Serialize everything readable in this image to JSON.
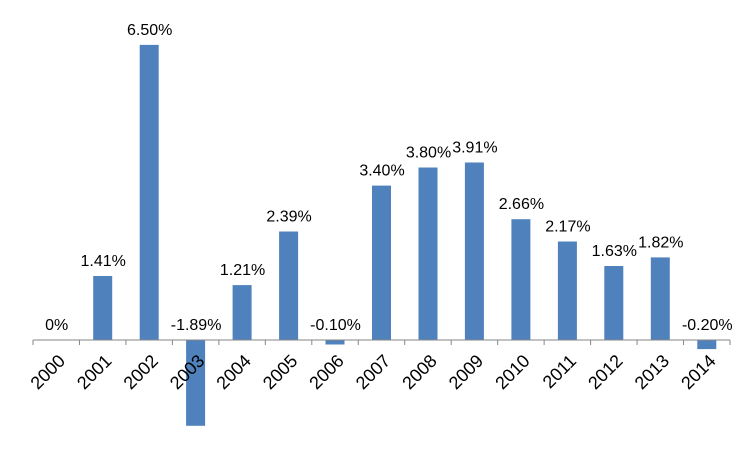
{
  "chart_data": {
    "type": "bar",
    "title": "",
    "xlabel": "",
    "ylabel": "",
    "ylim": [
      -2.0,
      6.5
    ],
    "grid": false,
    "legend": "none",
    "categories": [
      "2000",
      "2001",
      "2002",
      "2003",
      "2004",
      "2005",
      "2006",
      "2007",
      "2008",
      "2009",
      "2010",
      "2011",
      "2012",
      "2013",
      "2014"
    ],
    "values": [
      0,
      1.41,
      6.5,
      -1.89,
      1.21,
      2.39,
      -0.1,
      3.4,
      3.8,
      3.91,
      2.66,
      2.17,
      1.63,
      1.82,
      -0.2
    ],
    "data_labels": [
      "0%",
      "1.41%",
      "6.50%",
      "-1.89%",
      "1.21%",
      "2.39%",
      "-0.10%",
      "3.40%",
      "3.80%",
      "3.91%",
      "2.66%",
      "2.17%",
      "1.63%",
      "1.82%",
      "-0.20%"
    ],
    "bar_color": "#4f81bd",
    "axis_color": "#868686"
  }
}
